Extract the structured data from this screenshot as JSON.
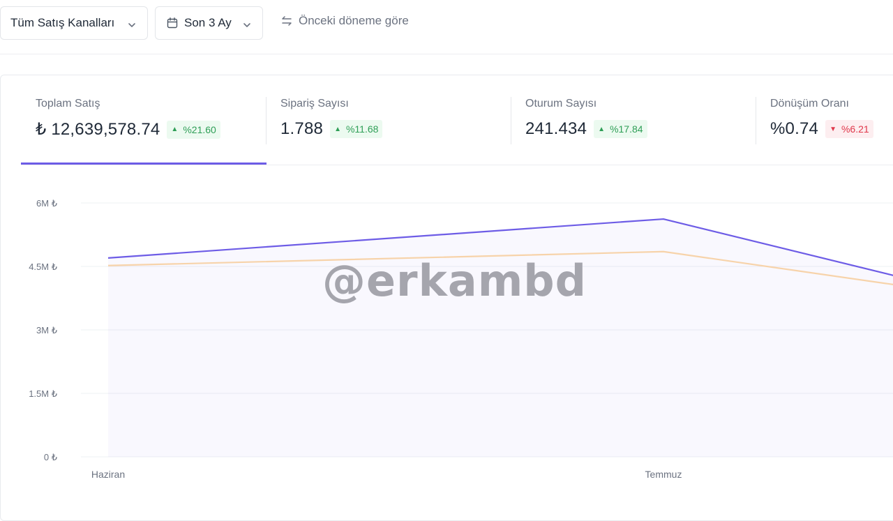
{
  "toolbar": {
    "channels_label": "Tüm Satış Kanalları",
    "period_label": "Son 3 Ay",
    "compare_label": "Önceki döneme göre"
  },
  "kpis": [
    {
      "label": "Toplam Satış",
      "value": "₺ 12,639,578.74",
      "change": "%21.60",
      "trend": "up"
    },
    {
      "label": "Sipariş Sayısı",
      "value": "1.788",
      "change": "%11.68",
      "trend": "up"
    },
    {
      "label": "Oturum Sayısı",
      "value": "241.434",
      "change": "%17.84",
      "trend": "up"
    },
    {
      "label": "Dönüşüm Oranı",
      "value": "%0.74",
      "change": "%6.21",
      "trend": "down"
    }
  ],
  "colors": {
    "accent": "#6d5ce6",
    "previous": "#f7d3aa",
    "up": "#2e9e56",
    "down": "#e0374a"
  },
  "watermark": "@erkambd",
  "chart_data": {
    "type": "area",
    "categories": [
      "Haziran",
      "Temmuz",
      ""
    ],
    "y_ticks": [
      "6M ₺",
      "4.5M ₺",
      "3M ₺",
      "1.5M ₺",
      "0 ₺"
    ],
    "ylim": [
      0,
      6000000
    ],
    "grid": true,
    "series": [
      {
        "values": [
          4700000,
          5620000,
          4250000
        ]
      },
      {
        "values": [
          4520000,
          4850000,
          4050000
        ]
      }
    ]
  }
}
